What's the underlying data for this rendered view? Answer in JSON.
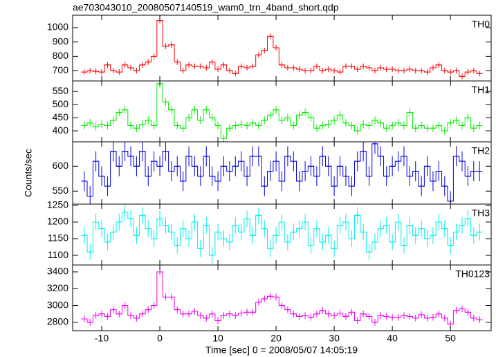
{
  "chart_data": {
    "type": "step",
    "title": "ae703043010_20080507140519_wam0_trn_4band_short.qdp",
    "xlabel": "Time [sec] 0 = 2008/05/07 14:05:19",
    "ylabel": "Counts/sec",
    "xlim": [
      -15,
      57
    ],
    "xticks": [
      -10,
      0,
      10,
      20,
      30,
      40,
      50
    ],
    "x": [
      -13,
      -12,
      -11,
      -10,
      -9,
      -8,
      -7,
      -6,
      -5,
      -4,
      -3,
      -2,
      -1,
      0,
      1,
      2,
      3,
      4,
      5,
      6,
      7,
      8,
      9,
      10,
      11,
      12,
      13,
      14,
      15,
      16,
      17,
      18,
      19,
      20,
      21,
      22,
      23,
      24,
      25,
      26,
      27,
      28,
      29,
      30,
      31,
      32,
      33,
      34,
      35,
      36,
      37,
      38,
      39,
      40,
      41,
      42,
      43,
      44,
      45,
      46,
      47,
      48,
      49,
      50,
      51,
      52,
      53,
      54,
      55
    ],
    "series": [
      {
        "name": "TH0",
        "color": "#ff0000",
        "ylim": [
          628,
          1087
        ],
        "yticks": [
          700,
          800,
          900,
          1000
        ],
        "error": 20,
        "values": [
          690,
          700,
          695,
          690,
          740,
          700,
          690,
          740,
          720,
          700,
          740,
          760,
          800,
          1050,
          870,
          880,
          760,
          700,
          740,
          730,
          730,
          720,
          760,
          710,
          740,
          700,
          680,
          730,
          720,
          730,
          810,
          840,
          940,
          860,
          740,
          720,
          720,
          710,
          700,
          700,
          730,
          700,
          710,
          700,
          690,
          730,
          730,
          710,
          730,
          720,
          700,
          720,
          710,
          710,
          700,
          700,
          710,
          700,
          700,
          690,
          720,
          740,
          700,
          690,
          700,
          660,
          690,
          700,
          680
        ]
      },
      {
        "name": "TH1",
        "color": "#00ee00",
        "ylim": [
          358,
          590
        ],
        "yticks": [
          400,
          450,
          500,
          550
        ],
        "error": 15,
        "values": [
          420,
          430,
          415,
          425,
          420,
          440,
          470,
          480,
          420,
          410,
          425,
          440,
          420,
          580,
          510,
          480,
          420,
          410,
          450,
          480,
          440,
          480,
          450,
          420,
          370,
          410,
          420,
          425,
          420,
          430,
          420,
          440,
          460,
          480,
          440,
          450,
          420,
          460,
          470,
          450,
          410,
          420,
          425,
          440,
          460,
          430,
          420,
          400,
          425,
          420,
          440,
          430,
          410,
          420,
          430,
          420,
          470,
          410,
          420,
          410,
          410,
          420,
          400,
          430,
          440,
          420,
          450,
          410,
          420
        ]
      },
      {
        "name": "TH2",
        "color": "#0000dd",
        "ylim": [
          524,
          649
        ],
        "yticks": [
          550,
          600
        ],
        "error": 20,
        "values": [
          570,
          540,
          610,
          580,
          560,
          630,
          600,
          630,
          620,
          600,
          630,
          580,
          610,
          600,
          630,
          590,
          600,
          570,
          620,
          600,
          580,
          620,
          580,
          570,
          600,
          590,
          600,
          610,
          580,
          620,
          620,
          560,
          590,
          610,
          570,
          620,
          610,
          570,
          590,
          600,
          580,
          620,
          600,
          560,
          600,
          580,
          560,
          610,
          630,
          580,
          645,
          620,
          580,
          600,
          610,
          620,
          580,
          590,
          560,
          600,
          570,
          590,
          560,
          530,
          620,
          610,
          580,
          590,
          590
        ]
      },
      {
        "name": "TH3",
        "color": "#00eeee",
        "ylim": [
          1071,
          1254
        ],
        "yticks": [
          1100,
          1150,
          1200,
          1250
        ],
        "error": 25,
        "values": [
          1160,
          1110,
          1200,
          1180,
          1140,
          1170,
          1200,
          1230,
          1210,
          1160,
          1220,
          1180,
          1150,
          1210,
          1190,
          1170,
          1130,
          1180,
          1150,
          1200,
          1120,
          1190,
          1100,
          1170,
          1150,
          1140,
          1190,
          1170,
          1210,
          1160,
          1220,
          1180,
          1120,
          1160,
          1200,
          1140,
          1170,
          1180,
          1200,
          1130,
          1180,
          1140,
          1160,
          1120,
          1190,
          1200,
          1150,
          1220,
          1170,
          1110,
          1140,
          1180,
          1190,
          1140,
          1200,
          1130,
          1190,
          1160,
          1180,
          1150,
          1160,
          1200,
          1180,
          1130,
          1170,
          1190,
          1210,
          1160,
          1170
        ]
      },
      {
        "name": "TH0123",
        "color": "#ee00ee",
        "ylim": [
          2700,
          3482
        ],
        "yticks": [
          2800,
          3000,
          3200,
          3400
        ],
        "error": 40,
        "values": [
          2840,
          2800,
          2880,
          2900,
          2870,
          2950,
          2900,
          3000,
          2880,
          2850,
          2900,
          2950,
          3000,
          3400,
          3100,
          3100,
          2950,
          2900,
          2900,
          2930,
          2880,
          2850,
          2900,
          2820,
          2880,
          2900,
          2880,
          2910,
          2920,
          2920,
          3040,
          3080,
          3110,
          3100,
          3000,
          2950,
          2900,
          2870,
          2880,
          2860,
          2900,
          2940,
          2900,
          2880,
          2910,
          2870,
          2920,
          2820,
          2900,
          2870,
          2800,
          2880,
          2870,
          2860,
          2860,
          2880,
          2870,
          2850,
          2890,
          2850,
          2860,
          2900,
          2850,
          2780,
          2940,
          2960,
          2920,
          2850,
          2830
        ]
      }
    ]
  }
}
